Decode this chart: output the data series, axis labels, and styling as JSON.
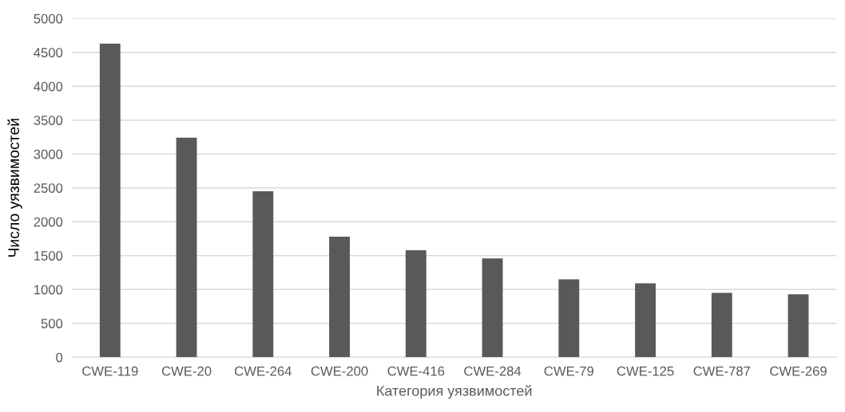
{
  "chart_data": {
    "type": "bar",
    "xlabel": "Категория уязвимостей",
    "ylabel": "Число уязвимостей",
    "categories": [
      "CWE-119",
      "CWE-20",
      "CWE-264",
      "CWE-200",
      "CWE-416",
      "CWE-284",
      "CWE-79",
      "CWE-125",
      "CWE-787",
      "CWE-269"
    ],
    "values": [
      4630,
      3240,
      2450,
      1780,
      1580,
      1460,
      1150,
      1090,
      950,
      930
    ],
    "color": "#595959",
    "ylim": [
      0,
      5000
    ],
    "yticks": [
      0,
      500,
      1000,
      1500,
      2000,
      2500,
      3000,
      3500,
      4000,
      4500,
      5000
    ],
    "grid": "y"
  }
}
